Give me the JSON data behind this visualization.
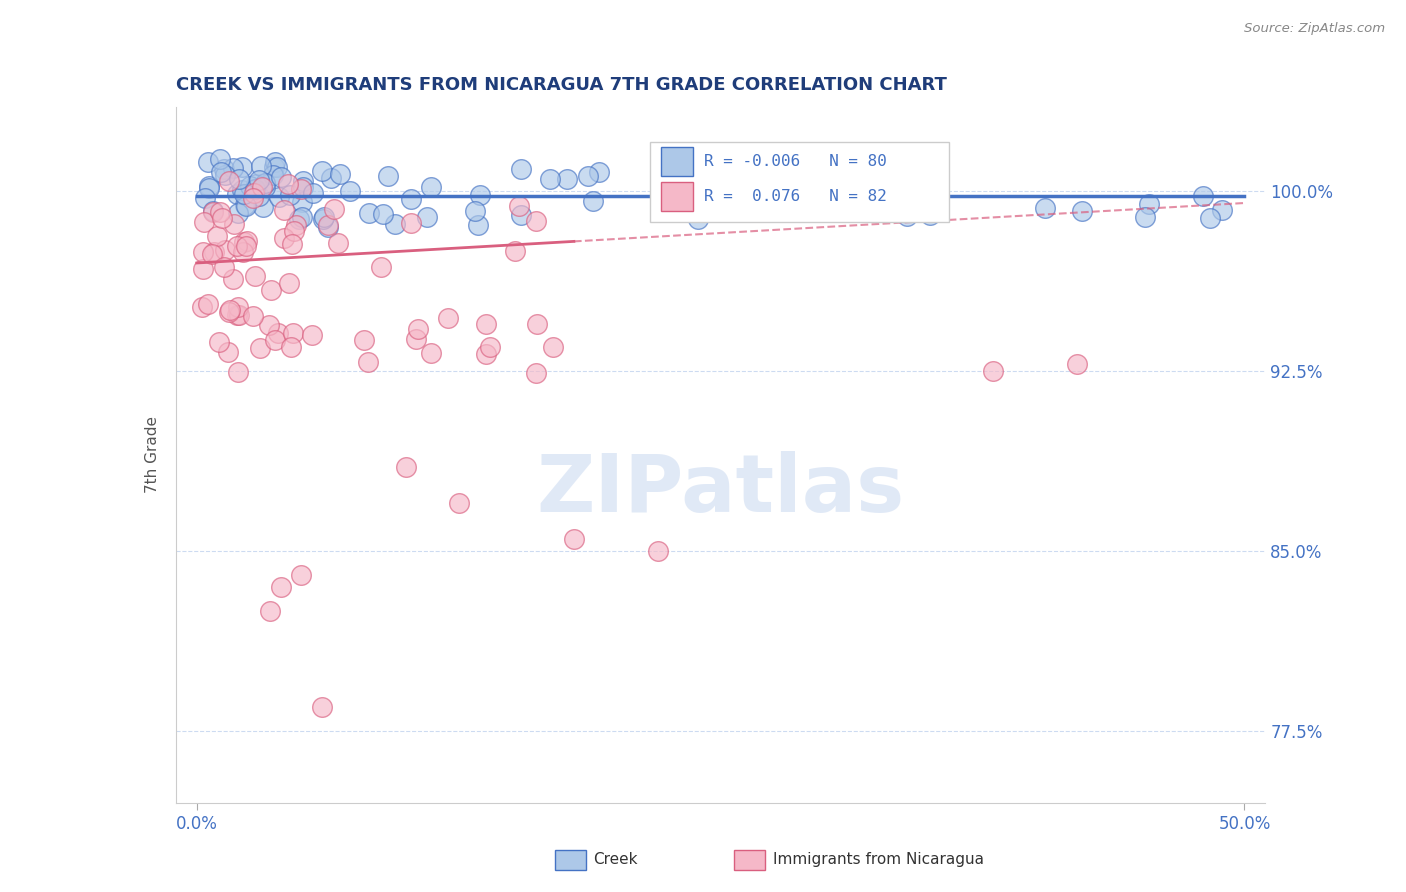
{
  "title": "CREEK VS IMMIGRANTS FROM NICARAGUA 7TH GRADE CORRELATION CHART",
  "source": "Source: ZipAtlas.com",
  "xlabel_creek": "Creek",
  "xlabel_nicaragua": "Immigrants from Nicaragua",
  "ylabel": "7th Grade",
  "xlim": [
    -1.0,
    51.0
  ],
  "ylim": [
    74.5,
    103.5
  ],
  "yticks": [
    77.5,
    85.0,
    92.5,
    100.0
  ],
  "xticks": [
    0.0,
    50.0
  ],
  "xticklabels": [
    "0.0%",
    "50.0%"
  ],
  "yticklabels": [
    "77.5%",
    "85.0%",
    "92.5%",
    "100.0%"
  ],
  "legend_R_creek": "-0.006",
  "legend_N_creek": "80",
  "legend_R_nicaragua": "0.076",
  "legend_N_nicaragua": "82",
  "color_creek_fill": "#adc8e8",
  "color_creek_edge": "#4472c4",
  "color_nicaragua_fill": "#f5b8c8",
  "color_nicaragua_edge": "#d95f7f",
  "color_creek_line": "#4472c4",
  "color_nicaragua_line": "#d95f7f",
  "watermark_text": "ZIPatlas",
  "title_color": "#1f3d7a",
  "axis_label_color": "#555555",
  "tick_color": "#4472c4",
  "background_color": "#ffffff",
  "grid_color": "#c8d8f0",
  "source_color": "#888888"
}
